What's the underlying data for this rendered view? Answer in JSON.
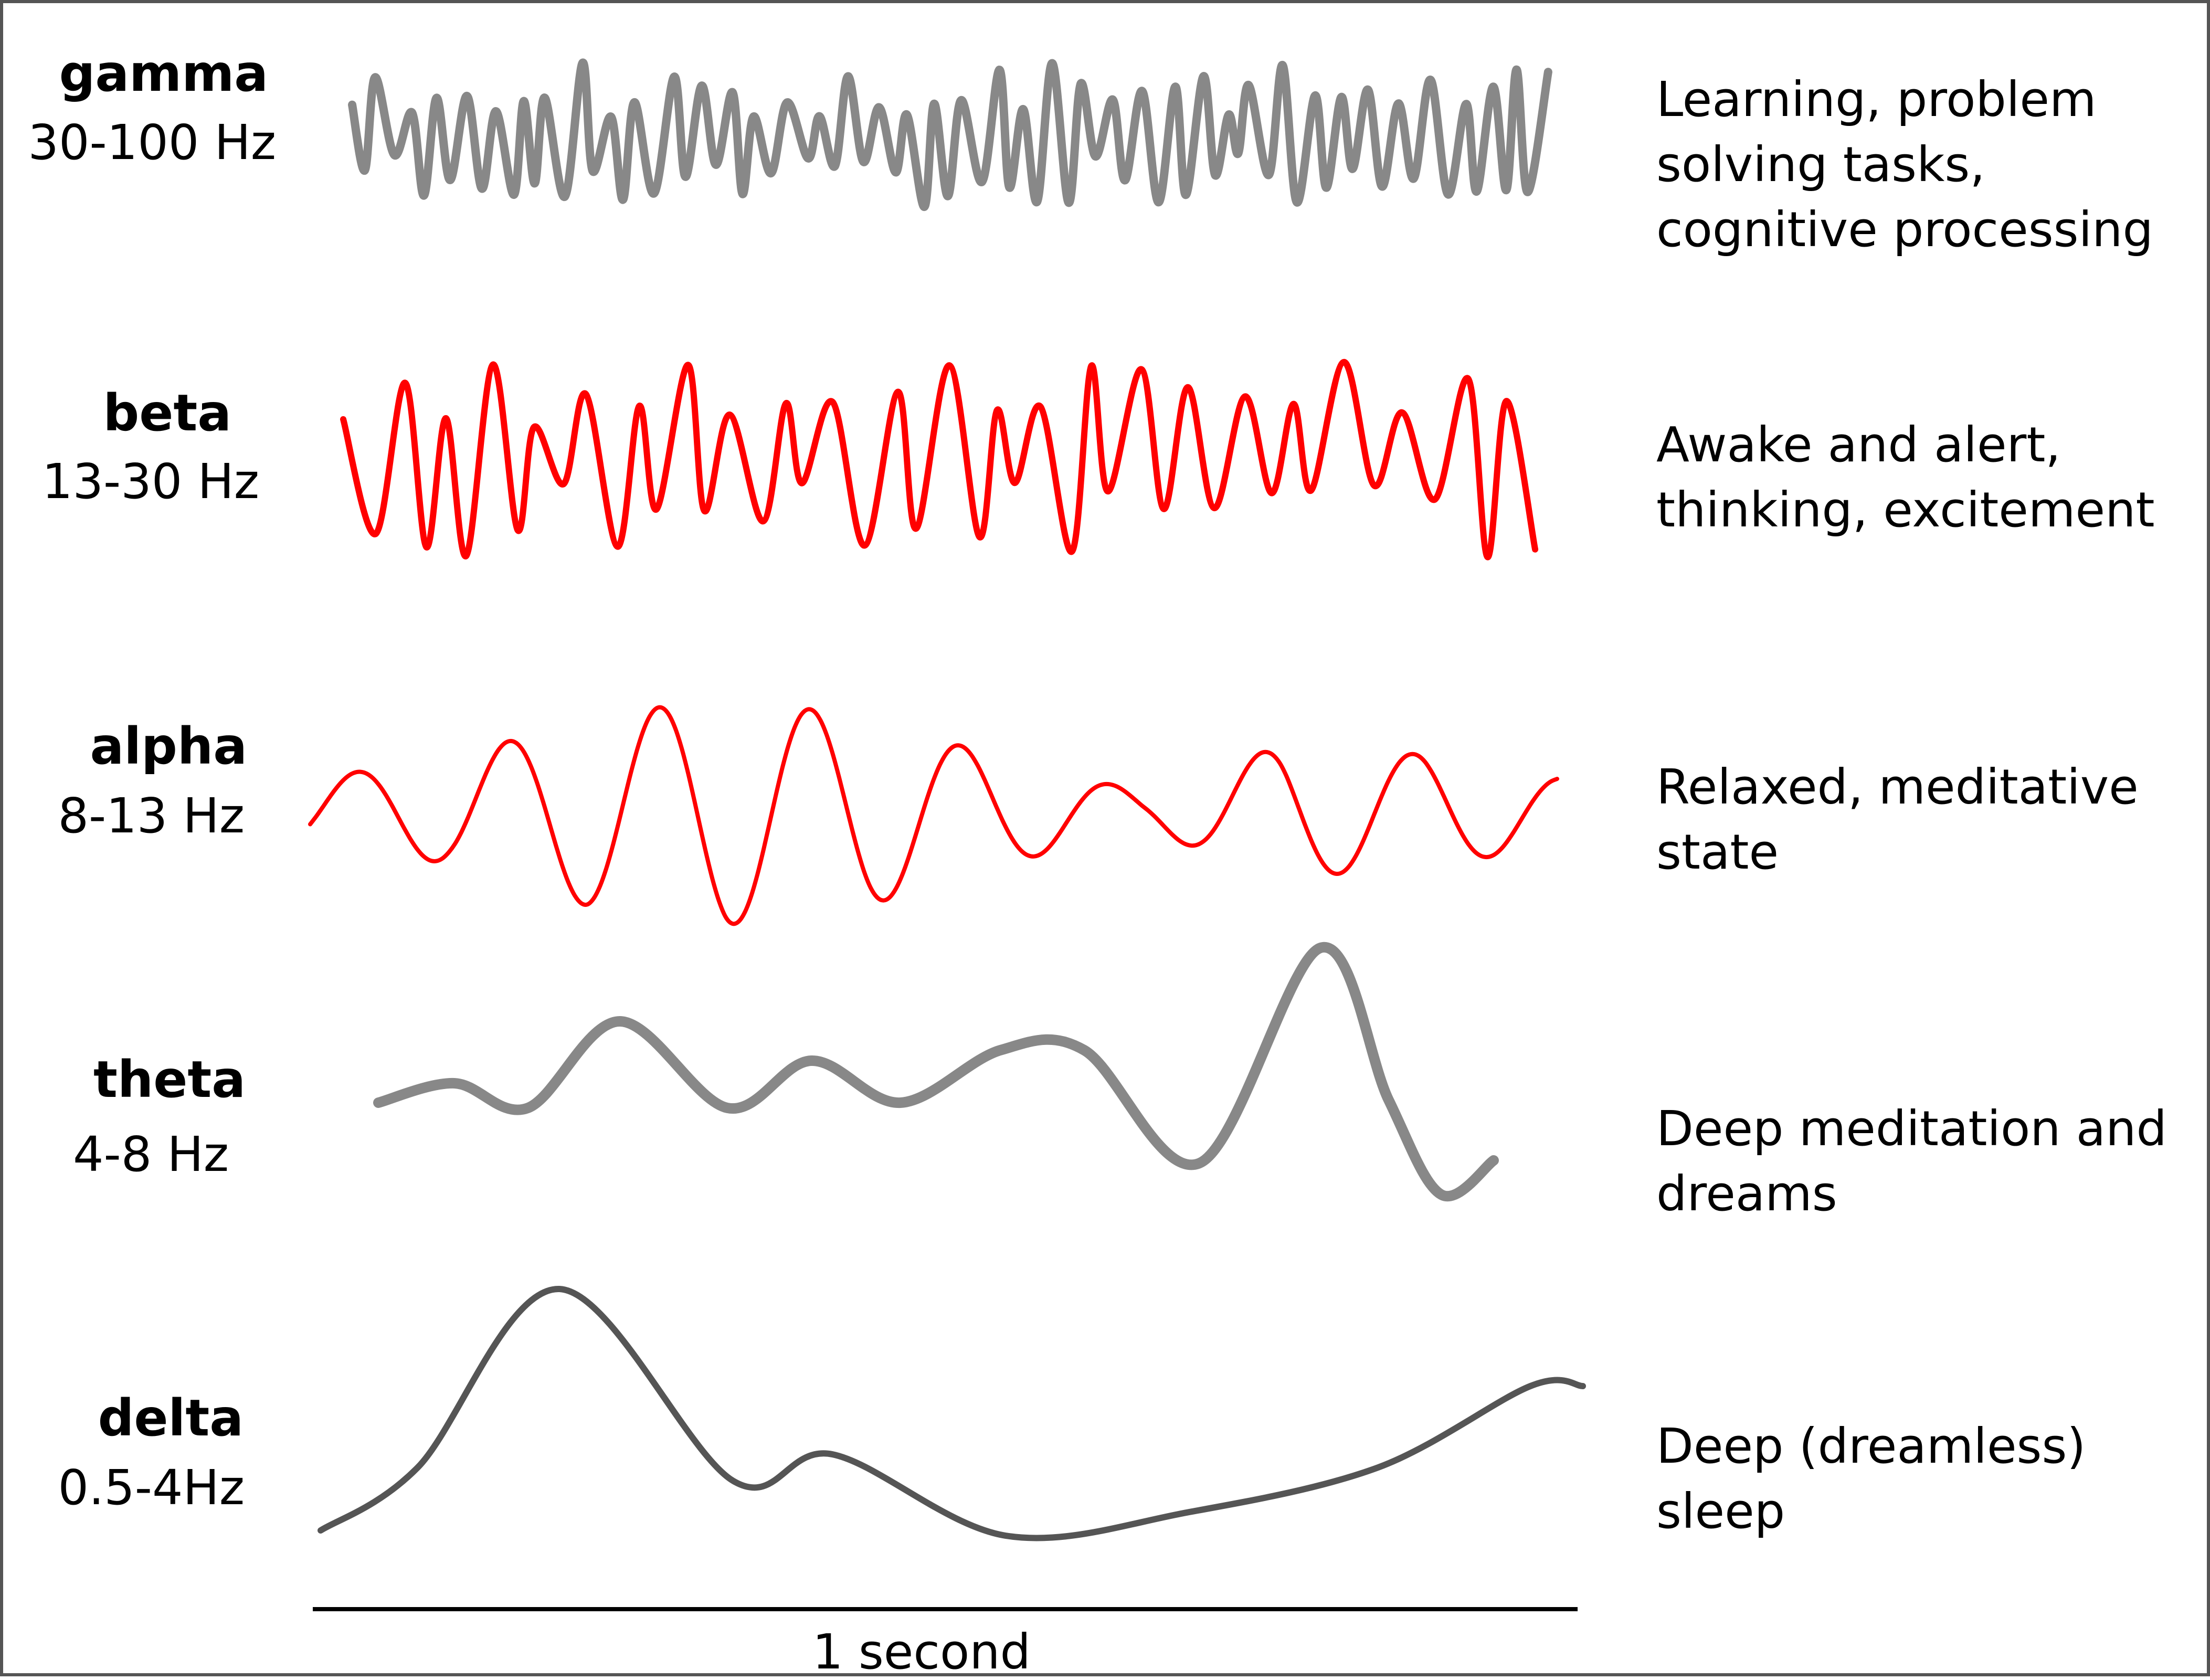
{
  "colors": {
    "gray": "#888888",
    "red": "#ff0000",
    "dark_gray": "#555555",
    "axis": "#000000"
  },
  "bands": [
    {
      "id": "gamma",
      "name": "gamma",
      "freq": "30-100 Hz",
      "description_lines": [
        "Learning, problem",
        "solving tasks,",
        "cognitive processing"
      ],
      "color": "#888888"
    },
    {
      "id": "beta",
      "name": "beta",
      "freq": "13-30 Hz",
      "description_lines": [
        "Awake and alert,",
        "thinking, excitement"
      ],
      "color": "#ff0000"
    },
    {
      "id": "alpha",
      "name": "alpha",
      "freq": "8-13 Hz",
      "description_lines": [
        "Relaxed, meditative",
        "state"
      ],
      "color": "#ff0000"
    },
    {
      "id": "theta",
      "name": "theta",
      "freq": "4-8 Hz",
      "description_lines": [
        "Deep meditation and",
        "dreams"
      ],
      "color": "#888888"
    },
    {
      "id": "delta",
      "name": "delta",
      "freq": "0.5-4Hz",
      "description_lines": [
        "Deep (dreamless)",
        "sleep"
      ],
      "color": "#555555"
    }
  ],
  "time_scale": {
    "label": "1 second"
  }
}
